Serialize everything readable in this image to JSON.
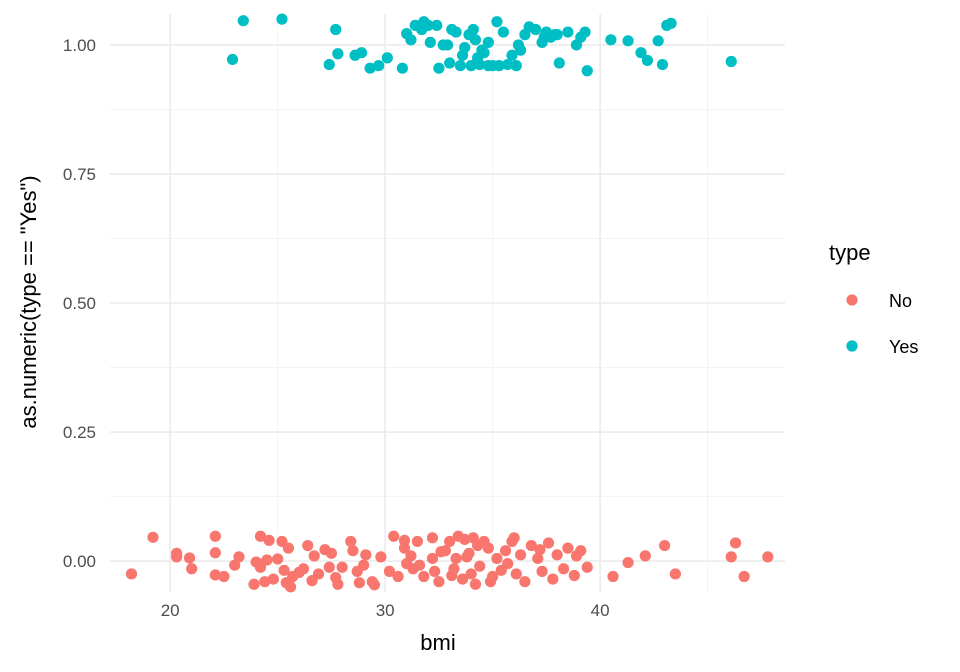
{
  "chart_data": {
    "type": "scatter",
    "title": "",
    "xlabel": "bmi",
    "ylabel": "as.numeric(type == \"Yes\")",
    "xlim": [
      17.2,
      48.6
    ],
    "ylim": [
      -0.06,
      1.06
    ],
    "x_ticks": [
      20,
      30,
      40
    ],
    "x_tick_labels": [
      "20",
      "30",
      "40"
    ],
    "y_ticks": [
      0,
      0.25,
      0.5,
      0.75,
      1
    ],
    "y_tick_labels": [
      "0.00",
      "0.25",
      "0.50",
      "0.75",
      "1.00"
    ],
    "grid": true,
    "legend": {
      "title": "type",
      "position": "right"
    },
    "series": [
      {
        "name": "No",
        "color": "#f8766d",
        "points": [
          [
            18.2,
            -0.025
          ],
          [
            19.2,
            0.046
          ],
          [
            20.3,
            0.015
          ],
          [
            20.3,
            0.008
          ],
          [
            20.9,
            0.006
          ],
          [
            21.0,
            -0.015
          ],
          [
            22.1,
            0.048
          ],
          [
            22.1,
            0.016
          ],
          [
            22.1,
            -0.027
          ],
          [
            22.5,
            -0.03
          ],
          [
            23.0,
            -0.008
          ],
          [
            23.2,
            0.008
          ],
          [
            23.9,
            -0.045
          ],
          [
            24.0,
            -0.002
          ],
          [
            24.2,
            0.048
          ],
          [
            24.2,
            -0.012
          ],
          [
            24.4,
            -0.04
          ],
          [
            24.6,
            0.04
          ],
          [
            24.8,
            -0.035
          ],
          [
            25.0,
            0.004
          ],
          [
            25.2,
            0.038
          ],
          [
            25.3,
            -0.018
          ],
          [
            25.4,
            -0.042
          ],
          [
            25.5,
            0.025
          ],
          [
            25.6,
            -0.05
          ],
          [
            25.7,
            -0.03
          ],
          [
            26.0,
            -0.022
          ],
          [
            26.2,
            -0.015
          ],
          [
            26.4,
            0.03
          ],
          [
            26.6,
            -0.038
          ],
          [
            26.7,
            0.01
          ],
          [
            26.9,
            -0.025
          ],
          [
            27.2,
            0.022
          ],
          [
            27.4,
            -0.012
          ],
          [
            27.7,
            -0.032
          ],
          [
            27.8,
            -0.045
          ],
          [
            28.0,
            -0.012
          ],
          [
            28.4,
            0.038
          ],
          [
            28.5,
            0.02
          ],
          [
            28.7,
            -0.02
          ],
          [
            28.8,
            -0.042
          ],
          [
            29.0,
            -0.008
          ],
          [
            29.4,
            -0.04
          ],
          [
            29.5,
            -0.046
          ],
          [
            29.8,
            0.008
          ],
          [
            30.2,
            -0.02
          ],
          [
            30.4,
            0.048
          ],
          [
            30.9,
            0.04
          ],
          [
            30.9,
            0.025
          ],
          [
            31.0,
            -0.005
          ],
          [
            31.2,
            0.01
          ],
          [
            31.3,
            -0.015
          ],
          [
            31.6,
            -0.008
          ],
          [
            31.8,
            -0.03
          ],
          [
            32.2,
            0.045
          ],
          [
            32.2,
            0.005
          ],
          [
            32.3,
            -0.02
          ],
          [
            32.5,
            -0.04
          ],
          [
            32.8,
            0.02
          ],
          [
            33.0,
            0.038
          ],
          [
            33.1,
            -0.028
          ],
          [
            33.2,
            -0.015
          ],
          [
            33.3,
            0.005
          ],
          [
            33.4,
            0.048
          ],
          [
            33.6,
            -0.035
          ],
          [
            33.7,
            0.042
          ],
          [
            33.8,
            0.008
          ],
          [
            34.0,
            -0.025
          ],
          [
            34.1,
            0.045
          ],
          [
            34.2,
            -0.045
          ],
          [
            34.3,
            0.03
          ],
          [
            34.4,
            -0.01
          ],
          [
            34.6,
            0.038
          ],
          [
            34.8,
            0.025
          ],
          [
            35.0,
            -0.03
          ],
          [
            35.2,
            0.005
          ],
          [
            35.4,
            -0.018
          ],
          [
            35.6,
            0.02
          ],
          [
            35.9,
            0.038
          ],
          [
            36.1,
            -0.025
          ],
          [
            36.3,
            0.012
          ],
          [
            36.5,
            -0.04
          ],
          [
            36.8,
            0.03
          ],
          [
            37.1,
            0.005
          ],
          [
            37.3,
            -0.02
          ],
          [
            37.6,
            0.035
          ],
          [
            37.8,
            -0.035
          ],
          [
            38.0,
            0.012
          ],
          [
            38.3,
            -0.015
          ],
          [
            38.5,
            0.025
          ],
          [
            38.8,
            -0.028
          ],
          [
            39.1,
            0.02
          ],
          [
            39.4,
            -0.012
          ],
          [
            40.6,
            -0.03
          ],
          [
            41.3,
            -0.003
          ],
          [
            42.1,
            0.01
          ],
          [
            43.0,
            0.03
          ],
          [
            43.5,
            -0.025
          ],
          [
            46.1,
            0.008
          ],
          [
            46.3,
            0.035
          ],
          [
            46.7,
            -0.03
          ],
          [
            47.8,
            0.008
          ],
          [
            24.5,
            0.002
          ],
          [
            27.5,
            0.015
          ],
          [
            29.1,
            0.012
          ],
          [
            31.5,
            0.038
          ],
          [
            32.6,
            0.018
          ],
          [
            34.9,
            -0.04
          ],
          [
            36.0,
            0.045
          ],
          [
            37.2,
            0.022
          ],
          [
            38.9,
            0.01
          ],
          [
            35.7,
            -0.005
          ],
          [
            33.9,
            0.015
          ],
          [
            30.6,
            -0.03
          ]
        ]
      },
      {
        "name": "Yes",
        "color": "#00bfc4",
        "points": [
          [
            22.9,
            0.972
          ],
          [
            23.4,
            1.047
          ],
          [
            25.2,
            1.05
          ],
          [
            27.4,
            0.962
          ],
          [
            27.7,
            1.03
          ],
          [
            27.8,
            0.983
          ],
          [
            28.6,
            0.98
          ],
          [
            28.9,
            0.985
          ],
          [
            29.3,
            0.955
          ],
          [
            29.7,
            0.96
          ],
          [
            30.1,
            0.975
          ],
          [
            30.8,
            0.955
          ],
          [
            31.0,
            1.022
          ],
          [
            31.2,
            1.01
          ],
          [
            31.4,
            1.038
          ],
          [
            31.7,
            1.03
          ],
          [
            31.8,
            1.045
          ],
          [
            32.0,
            1.038
          ],
          [
            32.1,
            1.005
          ],
          [
            32.4,
            1.038
          ],
          [
            32.5,
            0.955
          ],
          [
            32.9,
            1.0
          ],
          [
            33.1,
            1.03
          ],
          [
            33.3,
            1.025
          ],
          [
            33.5,
            0.96
          ],
          [
            33.6,
            0.98
          ],
          [
            33.7,
            0.995
          ],
          [
            33.9,
            1.02
          ],
          [
            34.0,
            0.96
          ],
          [
            34.1,
            1.03
          ],
          [
            34.2,
            1.01
          ],
          [
            34.3,
            0.975
          ],
          [
            34.4,
            0.962
          ],
          [
            34.5,
            0.99
          ],
          [
            34.6,
            0.985
          ],
          [
            34.8,
            0.96
          ],
          [
            35.2,
            1.045
          ],
          [
            35.3,
            0.96
          ],
          [
            35.5,
            1.025
          ],
          [
            35.7,
            0.962
          ],
          [
            35.9,
            0.98
          ],
          [
            36.2,
            1.0
          ],
          [
            36.3,
            0.99
          ],
          [
            36.5,
            1.02
          ],
          [
            36.7,
            1.035
          ],
          [
            37.0,
            1.03
          ],
          [
            37.3,
            1.005
          ],
          [
            37.5,
            1.025
          ],
          [
            37.7,
            1.015
          ],
          [
            37.9,
            1.02
          ],
          [
            38.1,
            0.965
          ],
          [
            38.5,
            1.025
          ],
          [
            38.9,
            1.0
          ],
          [
            39.1,
            1.015
          ],
          [
            39.3,
            1.025
          ],
          [
            39.4,
            0.95
          ],
          [
            40.5,
            1.01
          ],
          [
            41.3,
            1.008
          ],
          [
            41.9,
            0.985
          ],
          [
            42.2,
            0.97
          ],
          [
            42.7,
            1.008
          ],
          [
            42.9,
            0.962
          ],
          [
            43.1,
            1.038
          ],
          [
            43.3,
            1.042
          ],
          [
            46.1,
            0.968
          ],
          [
            37.4,
            1.015
          ],
          [
            35.0,
            0.96
          ],
          [
            33.0,
            0.965
          ],
          [
            36.1,
            0.96
          ],
          [
            32.7,
            1.0
          ],
          [
            34.8,
            1.005
          ],
          [
            38.0,
            1.02
          ]
        ]
      }
    ]
  }
}
